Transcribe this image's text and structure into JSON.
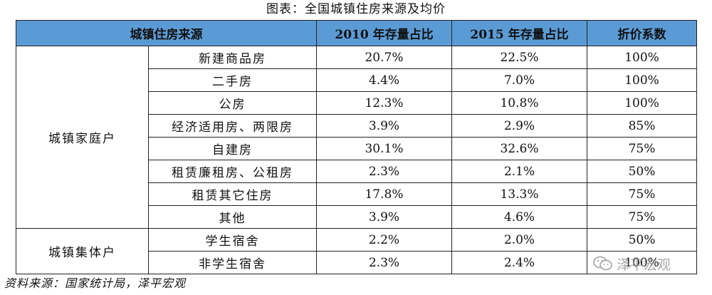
{
  "caption": "图表：全国城镇住房来源及均价",
  "headers": [
    "城镇住房来源",
    "2010 年存量占比",
    "2015 年存量占比",
    "折价系数"
  ],
  "groups": [
    {
      "name": "城镇家庭户",
      "rows": [
        {
          "name": "新建商品房",
          "y2010": "20.7%",
          "y2015": "22.5%",
          "discount": "100%"
        },
        {
          "name": "二手房",
          "y2010": "4.4%",
          "y2015": "7.0%",
          "discount": "100%"
        },
        {
          "name": "公房",
          "y2010": "12.3%",
          "y2015": "10.8%",
          "discount": "100%"
        },
        {
          "name": "经济适用房、两限房",
          "y2010": "3.9%",
          "y2015": "2.9%",
          "discount": "85%"
        },
        {
          "name": "自建房",
          "y2010": "30.1%",
          "y2015": "32.6%",
          "discount": "75%"
        },
        {
          "name": "租赁廉租房、公租房",
          "y2010": "2.3%",
          "y2015": "2.1%",
          "discount": "50%"
        },
        {
          "name": "租赁其它住房",
          "y2010": "17.8%",
          "y2015": "13.3%",
          "discount": "75%"
        },
        {
          "name": "其他",
          "y2010": "3.9%",
          "y2015": "4.6%",
          "discount": "75%"
        }
      ]
    },
    {
      "name": "城镇集体户",
      "rows": [
        {
          "name": "学生宿舍",
          "y2010": "2.2%",
          "y2015": "2.0%",
          "discount": "50%"
        },
        {
          "name": "非学生宿舍",
          "y2010": "2.3%",
          "y2015": "2.4%",
          "discount": "100%"
        }
      ]
    }
  ],
  "source": "资料来源：国家统计局，泽平宏观",
  "watermark": {
    "text": "泽平宏观",
    "icon": "wechat-icon"
  },
  "colors": {
    "header_bg": "#5b9bd5"
  }
}
